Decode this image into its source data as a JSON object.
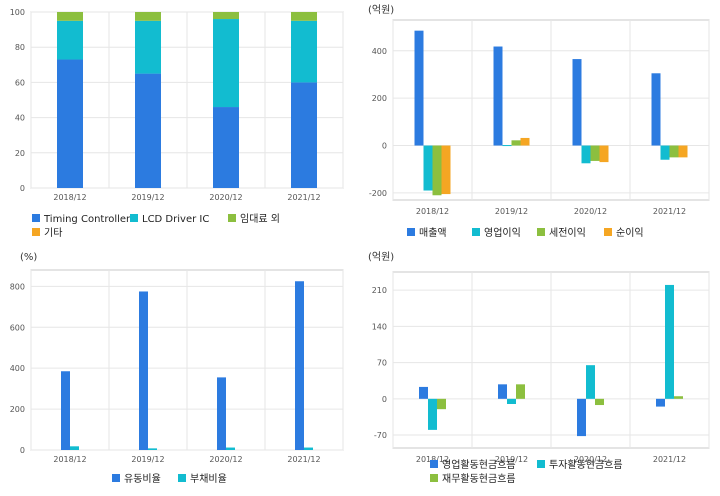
{
  "colors": {
    "blue": "#2c7be0",
    "cyan": "#12bcd0",
    "green": "#8cbf3f",
    "orange": "#f5a623",
    "grid": "#e6e6e6",
    "frame": "#c8c8c8",
    "tick_text": "#555555"
  },
  "chart_data": [
    {
      "id": "sales-mix",
      "type": "bar",
      "stacked": true,
      "unit": "",
      "categories": [
        "2018/12",
        "2019/12",
        "2020/12",
        "2021/12"
      ],
      "ylim": [
        0,
        100
      ],
      "yticks": [
        0,
        20,
        40,
        60,
        80,
        100
      ],
      "grid": true,
      "legend_position": "bottom",
      "series": [
        {
          "name": "Timing Controller",
          "color": "#2c7be0",
          "values": [
            73,
            65,
            46,
            60
          ]
        },
        {
          "name": "LCD Driver IC",
          "color": "#12bcd0",
          "values": [
            22,
            30,
            50,
            35
          ]
        },
        {
          "name": "임대료 외",
          "color": "#8cbf3f",
          "values": [
            5,
            5,
            4,
            5
          ]
        },
        {
          "name": "기타",
          "color": "#f5a623",
          "values": [
            0,
            0,
            0,
            0
          ]
        }
      ]
    },
    {
      "id": "profit",
      "type": "bar",
      "stacked": false,
      "unit": "(억원)",
      "categories": [
        "2018/12",
        "2019/12",
        "2020/12",
        "2021/12"
      ],
      "ylim": [
        -230,
        530
      ],
      "yticks": [
        -200,
        0,
        200,
        400
      ],
      "grid": true,
      "legend_position": "bottom",
      "series": [
        {
          "name": "매출액",
          "color": "#2c7be0",
          "values": [
            485,
            418,
            365,
            305
          ]
        },
        {
          "name": "영업이익",
          "color": "#12bcd0",
          "values": [
            -190,
            2,
            -75,
            -60
          ]
        },
        {
          "name": "세전이익",
          "color": "#8cbf3f",
          "values": [
            -210,
            22,
            -65,
            -50
          ]
        },
        {
          "name": "순이익",
          "color": "#f5a623",
          "values": [
            -205,
            32,
            -70,
            -50
          ]
        }
      ]
    },
    {
      "id": "ratios",
      "type": "bar",
      "stacked": false,
      "unit": "(%)",
      "categories": [
        "2018/12",
        "2019/12",
        "2020/12",
        "2021/12"
      ],
      "ylim": [
        0,
        880
      ],
      "yticks": [
        0,
        200,
        400,
        600,
        800
      ],
      "grid": true,
      "legend_position": "bottom",
      "series": [
        {
          "name": "유동비율",
          "color": "#2c7be0",
          "values": [
            385,
            775,
            355,
            825
          ]
        },
        {
          "name": "부채비율",
          "color": "#12bcd0",
          "values": [
            18,
            8,
            12,
            12
          ]
        }
      ]
    },
    {
      "id": "cashflow",
      "type": "bar",
      "stacked": false,
      "unit": "(억원)",
      "categories": [
        "2018/12",
        "2019/12",
        "2020/12",
        "2021/12"
      ],
      "ylim": [
        -95,
        245
      ],
      "yticks": [
        -70,
        0,
        70,
        140,
        210
      ],
      "grid": true,
      "legend_position": "bottom",
      "series": [
        {
          "name": "영업활동현금흐름",
          "color": "#2c7be0",
          "values": [
            23,
            28,
            -72,
            -15
          ]
        },
        {
          "name": "투자활동현금흐름",
          "color": "#12bcd0",
          "values": [
            -60,
            -10,
            65,
            220
          ]
        },
        {
          "name": "재무활동현금흐름",
          "color": "#8cbf3f",
          "values": [
            -20,
            28,
            -12,
            5
          ]
        }
      ]
    }
  ]
}
